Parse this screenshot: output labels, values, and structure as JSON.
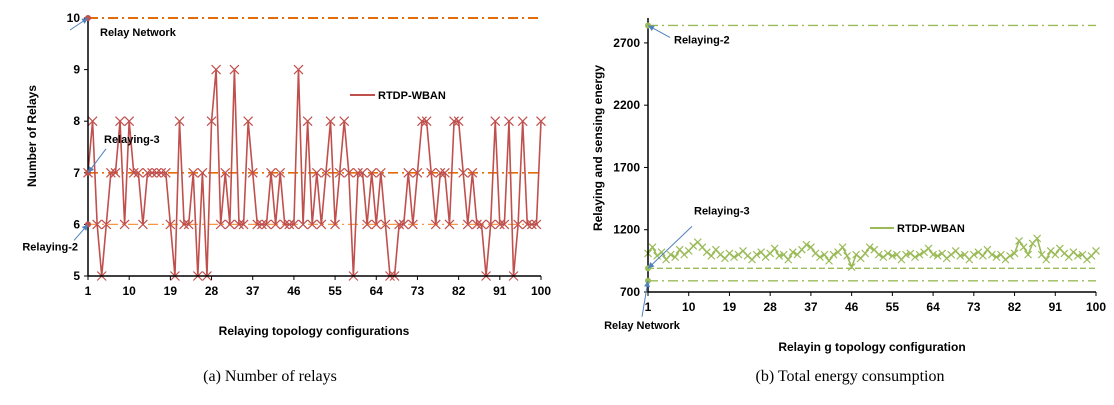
{
  "captions": {
    "a": "(a) Number of relays",
    "b": "(b) Total energy consumption"
  },
  "chart_data": [
    {
      "type": "line",
      "title": "",
      "xlabel": "Relaying topology configurations",
      "ylabel": "Number of Relays",
      "xlim": [
        1,
        100
      ],
      "ylim": [
        5,
        10
      ],
      "xticks": [
        "1",
        "10",
        "19",
        "28",
        "37",
        "46",
        "55",
        "64",
        "73",
        "82",
        "91",
        "100"
      ],
      "yticks": [
        "5",
        "6",
        "7",
        "8",
        "9",
        "10"
      ],
      "grid": false,
      "legend_position": "top-center",
      "color_rtdp": "#c0504d",
      "color_ref": "#f79646",
      "series": [
        {
          "name": "RTDP-WBAN",
          "x_start": 1,
          "values": [
            7,
            8,
            6,
            5,
            6,
            7,
            7,
            8,
            6,
            8,
            7,
            7,
            6,
            7,
            7,
            7,
            7,
            7,
            6,
            5,
            8,
            6,
            6,
            7,
            5,
            7,
            5,
            8,
            9,
            6,
            7,
            6,
            9,
            6,
            6,
            8,
            7,
            6,
            6,
            6,
            7,
            6,
            7,
            6,
            6,
            6,
            9,
            6,
            8,
            6,
            7,
            6,
            7,
            8,
            6,
            7,
            8,
            7,
            5,
            7,
            7,
            6,
            7,
            6,
            7,
            6,
            5,
            5,
            6,
            6,
            7,
            6,
            7,
            8,
            8,
            7,
            6,
            7,
            7,
            6,
            8,
            8,
            7,
            6,
            7,
            6,
            6,
            5,
            6,
            8,
            6,
            6,
            8,
            5,
            6,
            8,
            6,
            6,
            6,
            8
          ]
        }
      ],
      "reference_lines": [
        {
          "value": 10,
          "style": "dash-dot"
        },
        {
          "value": 7,
          "style": "dash-dot"
        },
        {
          "value": 6,
          "style": "dash-dot"
        }
      ],
      "annotations": [
        {
          "text": "Relay Network",
          "points_to": 10
        },
        {
          "text": "Relaying-3",
          "points_to": 7
        },
        {
          "text": "Relaying-2",
          "points_to": 6
        }
      ]
    },
    {
      "type": "line",
      "title": "",
      "xlabel": "Relayin g topology configuration",
      "ylabel": "Relaying and sensing energy",
      "xlim": [
        1,
        100
      ],
      "ylim": [
        700,
        2900
      ],
      "xticks": [
        "1",
        "10",
        "19",
        "28",
        "37",
        "46",
        "55",
        "64",
        "73",
        "82",
        "91",
        "100"
      ],
      "yticks": [
        "700",
        "1200",
        "1700",
        "2200",
        "2700"
      ],
      "grid": false,
      "legend_position": "middle-center",
      "color_rtdp": "#9bbb59",
      "series": [
        {
          "name": "RTDP-WBAN",
          "x_start": 1,
          "values": [
            1010,
            1060,
            990,
            1020,
            960,
            1000,
            980,
            1040,
            1000,
            1030,
            1070,
            1100,
            1060,
            1020,
            990,
            1040,
            1000,
            970,
            1010,
            980,
            1000,
            1030,
            990,
            960,
            1000,
            1020,
            980,
            1010,
            1050,
            990,
            1000,
            960,
            1020,
            1000,
            1040,
            1080,
            1060,
            1010,
            980,
            1000,
            950,
            1000,
            1020,
            1060,
            990,
            900,
            1000,
            970,
            1010,
            1060,
            1040,
            1000,
            980,
            1010,
            990,
            1000,
            960,
            1000,
            1010,
            980,
            1000,
            1020,
            1050,
            1000,
            990,
            1010,
            970,
            1000,
            1030,
            990,
            1000,
            960,
            1000,
            1020,
            990,
            1040,
            1000,
            980,
            1000,
            960,
            990,
            1010,
            1110,
            1060,
            1000,
            1090,
            1130,
            1000,
            960,
            1030,
            1000,
            1050,
            1010,
            980,
            1020,
            990,
            1000,
            960,
            990,
            1030
          ]
        }
      ],
      "reference_lines": [
        {
          "value": 2840,
          "style": "dash-dot"
        },
        {
          "value": 890,
          "style": "dashed"
        },
        {
          "value": 790,
          "style": "dash-dot"
        }
      ],
      "annotations": [
        {
          "text": "Relaying-2",
          "points_to": 2840
        },
        {
          "text": "Relaying-3",
          "points_to": 890
        },
        {
          "text": "Relay Network",
          "points_to": 790
        }
      ]
    }
  ]
}
